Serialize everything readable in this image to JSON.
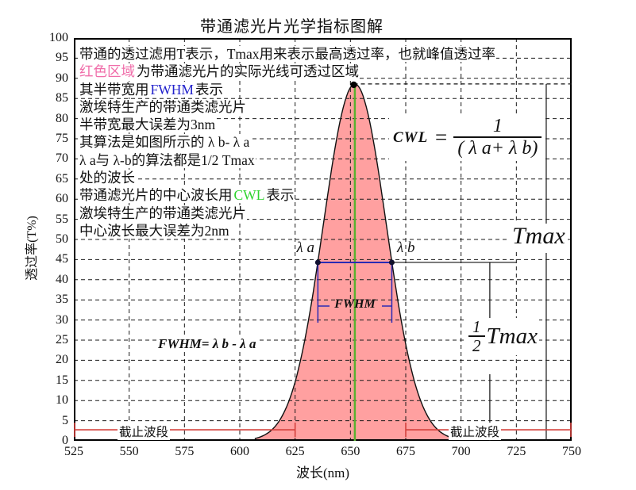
{
  "title": "带通滤光片光学指标图解",
  "colors": {
    "curve_fill": "#ffa0a0",
    "curve_stroke": "#111111",
    "grid": "#1a1a1a",
    "green_line": "#5ab12f",
    "green_text": "#2fd42f",
    "blue": "#2222cc",
    "blue_line": "#2a2ab4",
    "pink_text": "#f06eaa",
    "red": "#d4403c",
    "black_text": "#111111"
  },
  "info_lines": [
    [
      {
        "t": "带通的透过滤用T表示，Tmax用来表示最高透过率，也就峰值透过率",
        "c": "black"
      }
    ],
    [
      {
        "t": "红色区域",
        "c": "pink"
      },
      {
        "t": "为带通滤光片的实际光线可透过区域",
        "c": "black"
      }
    ],
    [
      {
        "t": "其半带宽用",
        "c": "black"
      },
      {
        "t": "FWHM",
        "c": "blue"
      },
      {
        "t": "表示",
        "c": "black"
      }
    ],
    [
      {
        "t": "激埃特生产的带通类滤光片",
        "c": "black"
      }
    ],
    [
      {
        "t": "半带宽最大误差为3nm",
        "c": "black"
      }
    ],
    [
      {
        "t": "其算法是如图所示的 λ b- λ a",
        "c": "black"
      }
    ],
    [
      {
        "t": " λ a与 λ-b的算法都是1/2 Tmax",
        "c": "black"
      }
    ],
    [
      {
        "t": " 处的波长",
        "c": "black"
      }
    ],
    [
      {
        "t": "带通滤光片的中心波长用",
        "c": "black"
      },
      {
        "t": "CWL",
        "c": "green"
      },
      {
        "t": "表示",
        "c": "black"
      }
    ],
    [
      {
        "t": "激埃特生产的带通类滤光片",
        "c": "black"
      }
    ],
    [
      {
        "t": "中心波长最大误差为2nm",
        "c": "black"
      }
    ]
  ],
  "chart_data": {
    "type": "area",
    "title": "带通滤光片光学指标图解",
    "xlabel": "波长(nm)",
    "ylabel": "透过率(T%)",
    "xlim": [
      525,
      750
    ],
    "x_tick_step": 25,
    "ylim": [
      0,
      100
    ],
    "y_tick_step": 5,
    "grid": "dashed",
    "curve": {
      "shape": "gaussian",
      "center_nm": 652,
      "fwhm_nm": 33.5,
      "peak_percent": 88.6,
      "half_max_percent": 44.3,
      "lambda_a_nm": 635.3,
      "lambda_b_nm": 668.7
    },
    "cutoff_level_percent": 2.75,
    "cutoff_bands_nm": [
      [
        525,
        625
      ],
      [
        675,
        750
      ]
    ],
    "annotations": {
      "lambda_a": "λ a",
      "lambda_b": "λ b",
      "tmax": "Tmax",
      "half_tmax": {
        "numerator": "1",
        "denominator": "2",
        "suffix": "Tmax"
      },
      "fwhm": "FWHM",
      "fwhm_formula": "FWHM= λ b - λ a",
      "cwl_formula": {
        "lhs": "CWL",
        "eq": "=",
        "numerator": "1",
        "denominator": "( λ a+ λ b)"
      },
      "cutoff_band": "截止波段"
    }
  }
}
